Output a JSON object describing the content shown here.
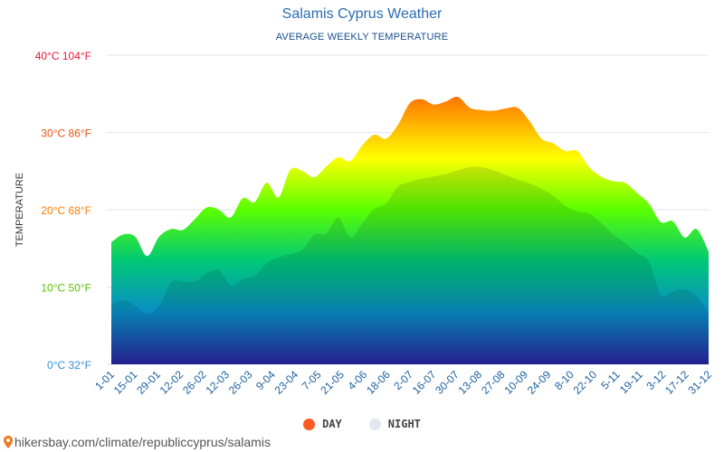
{
  "header": {
    "title": "Salamis Cyprus Weather",
    "subtitle": "AVERAGE WEEKLY TEMPERATURE"
  },
  "legend": {
    "day": "DAY",
    "night": "NIGHT"
  },
  "footer": {
    "source": "hikersbay.com/climate/republiccyprus/salamis"
  },
  "colors": {
    "day": "#ff5a1f",
    "night": "#e2e8ef",
    "gradient": [
      "#ff1040",
      "#ff8c00",
      "#ffff00",
      "#5aff00",
      "#00c878",
      "#0a8cc8",
      "#2a1fa0"
    ]
  },
  "chart_data": {
    "type": "area",
    "ylabel": "TEMPERATURE",
    "ylim": [
      0,
      40
    ],
    "y_ticks": [
      {
        "value": 0,
        "label": "0°C 32°F",
        "color": "#2f8fd8"
      },
      {
        "value": 10,
        "label": "10°C 50°F",
        "color": "#5cc400"
      },
      {
        "value": 20,
        "label": "20°C 68°F",
        "color": "#ff7a00"
      },
      {
        "value": 30,
        "label": "30°C 86°F",
        "color": "#f05010"
      },
      {
        "value": 40,
        "label": "40°C 104°F",
        "color": "#e8163a"
      }
    ],
    "x_labels": [
      "1-01",
      "15-01",
      "29-01",
      "12-02",
      "26-02",
      "12-03",
      "26-03",
      "9-04",
      "23-04",
      "7-05",
      "21-05",
      "4-06",
      "18-06",
      "2-07",
      "16-07",
      "30-07",
      "13-08",
      "27-08",
      "10-09",
      "24-09",
      "8-10",
      "22-10",
      "5-11",
      "19-11",
      "3-12",
      "17-12",
      "31-12"
    ],
    "series": [
      {
        "name": "DAY",
        "values": [
          15.8,
          16.8,
          16.5,
          14.0,
          16.5,
          17.5,
          17.4,
          18.8,
          20.3,
          20.0,
          19.0,
          21.5,
          21.0,
          23.5,
          21.6,
          25.2,
          25.0,
          24.2,
          25.6,
          26.8,
          26.3,
          28.3,
          29.7,
          29.2,
          31.0,
          33.8,
          34.3,
          33.6,
          34.0,
          34.6,
          33.2,
          32.9,
          32.8,
          33.1,
          33.2,
          31.5,
          29.2,
          28.6,
          27.6,
          27.6,
          25.5,
          24.3,
          23.7,
          23.5,
          22.2,
          20.8,
          18.4,
          18.5,
          16.4,
          17.5,
          14.6
        ]
      },
      {
        "name": "NIGHT",
        "values": [
          7.7,
          8.3,
          7.6,
          6.5,
          7.5,
          10.6,
          10.7,
          10.7,
          11.8,
          12.2,
          10.2,
          11.0,
          11.5,
          13.1,
          13.8,
          14.3,
          14.8,
          16.8,
          16.9,
          19.0,
          16.4,
          18.2,
          20.1,
          20.8,
          23.0,
          23.6,
          24.0,
          24.3,
          24.6,
          25.1,
          25.5,
          25.5,
          25.1,
          24.5,
          23.9,
          23.4,
          22.7,
          21.8,
          20.5,
          19.8,
          19.5,
          18.3,
          16.8,
          15.7,
          14.4,
          13.3,
          9.0,
          9.4,
          9.7,
          8.8,
          6.7
        ]
      }
    ],
    "grid": true
  }
}
